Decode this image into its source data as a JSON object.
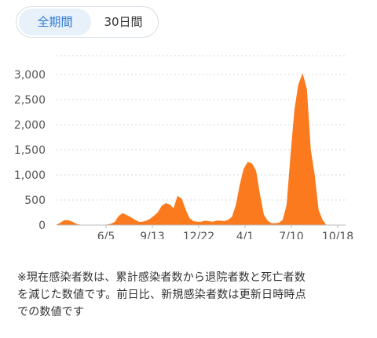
{
  "tabs": [
    {
      "label": "全期間",
      "active": true
    },
    {
      "label": "30日間",
      "active": false
    }
  ],
  "chart_data": {
    "type": "area",
    "color": "#fb7a1e",
    "ylim": [
      0,
      3000
    ],
    "yticks": [
      0,
      500,
      1000,
      1500,
      2000,
      2500,
      3000
    ],
    "ytick_labels": [
      "0",
      "500",
      "1,000",
      "1,500",
      "2,000",
      "2,500",
      "3,000"
    ],
    "xtick_labels": [
      "6/5",
      "9/13",
      "12/22",
      "4/1",
      "7/10",
      "10/18"
    ],
    "grid": true,
    "x": [
      0,
      5,
      10,
      15,
      20,
      25,
      30,
      35,
      40,
      45,
      50,
      55,
      60,
      65,
      70,
      75,
      80,
      85,
      90,
      95,
      100,
      105,
      110,
      115,
      120,
      125,
      130,
      135,
      140,
      145,
      150,
      155,
      160,
      165,
      170,
      175,
      180,
      185,
      190,
      195,
      200,
      205,
      210,
      215,
      220,
      225,
      230,
      235,
      240,
      245,
      250,
      255,
      260,
      265,
      270,
      275,
      280,
      285,
      290,
      295,
      300,
      305,
      310,
      315,
      320,
      325,
      330,
      335,
      340,
      345,
      350,
      355,
      360,
      365,
      370
    ],
    "values": [
      0,
      40,
      90,
      90,
      60,
      20,
      0,
      0,
      0,
      0,
      0,
      0,
      0,
      5,
      20,
      60,
      180,
      230,
      190,
      150,
      100,
      60,
      60,
      80,
      120,
      180,
      250,
      380,
      430,
      400,
      320,
      570,
      520,
      300,
      130,
      70,
      60,
      60,
      80,
      70,
      60,
      80,
      80,
      70,
      100,
      160,
      400,
      800,
      1120,
      1250,
      1220,
      1080,
      600,
      200,
      80,
      30,
      30,
      40,
      100,
      400,
      1400,
      2300,
      2800,
      3000,
      2700,
      1500,
      1000,
      300,
      100,
      0,
      0,
      0,
      0,
      0,
      0
    ]
  },
  "note": {
    "line1": "※現在感染者数は、累計感染者数から退院者数と死亡者数",
    "line2": "を減じた数値です。前日比、新規感染者数は更新日時時点",
    "line3": "での数値です"
  }
}
